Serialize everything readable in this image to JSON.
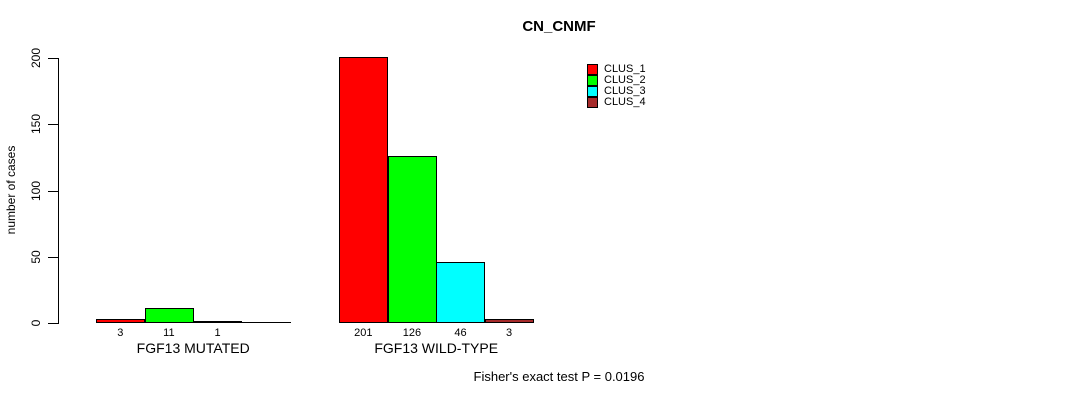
{
  "title": "CN_CNMF",
  "y_axis": {
    "label": "number of cases"
  },
  "footer": "Fisher's exact test P = 0.0196",
  "legend": {
    "items": [
      {
        "label": "CLUS_1",
        "color": "#ff0000"
      },
      {
        "label": "CLUS_2",
        "color": "#00ff00"
      },
      {
        "label": "CLUS_3",
        "color": "#00ffff"
      },
      {
        "label": "CLUS_4",
        "color": "#a52a2a"
      }
    ]
  },
  "chart_data": {
    "type": "bar",
    "title": "CN_CNMF",
    "xlabel": "",
    "ylabel": "number of cases",
    "ylim": [
      0,
      200
    ],
    "yticks": [
      0,
      50,
      100,
      150,
      200
    ],
    "grid": false,
    "legend_position": "top-right",
    "categories": [
      "FGF13 MUTATED",
      "FGF13 WILD-TYPE"
    ],
    "series": [
      {
        "name": "CLUS_1",
        "color": "#ff0000",
        "values": [
          3,
          201
        ]
      },
      {
        "name": "CLUS_2",
        "color": "#00ff00",
        "values": [
          11,
          126
        ]
      },
      {
        "name": "CLUS_3",
        "color": "#00ffff",
        "values": [
          1,
          46
        ]
      },
      {
        "name": "CLUS_4",
        "color": "#a52a2a",
        "values": [
          0,
          3
        ]
      }
    ],
    "bar_value_labels": [
      [
        "3",
        "11",
        "1",
        ""
      ],
      [
        "201",
        "126",
        "46",
        "3"
      ]
    ],
    "annotation": "Fisher's exact test P = 0.0196"
  }
}
